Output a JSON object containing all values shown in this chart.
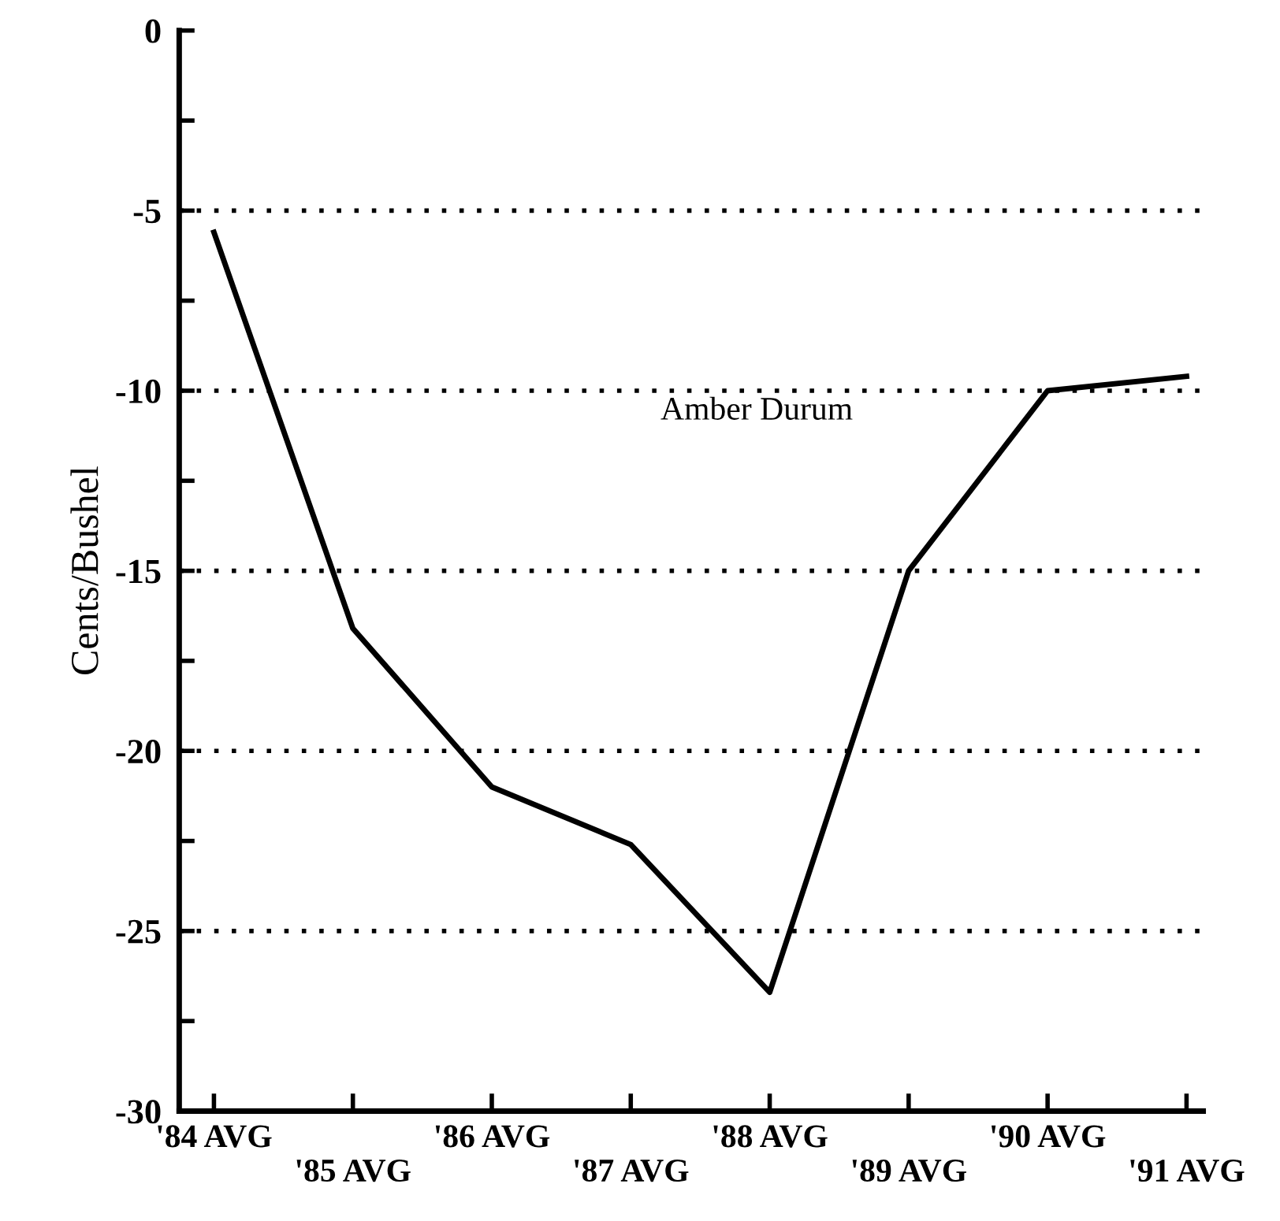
{
  "chart_data": {
    "type": "line",
    "ylabel": "Cents/Bushel",
    "categories": [
      "'84 AVG",
      "'85 AVG",
      "'86 AVG",
      "'87 AVG",
      "'88 AVG",
      "'89 AVG",
      "'90 AVG",
      "'91 AVG"
    ],
    "series": [
      {
        "name": "Amber Durum",
        "color": "#000000",
        "values": [
          -5.6,
          -16.6,
          -21.0,
          -22.6,
          -26.7,
          -15.0,
          -10.0,
          -9.6
        ]
      }
    ],
    "ylim": [
      -30,
      0
    ],
    "yticks": [
      -30,
      {
        "value": -27.5,
        "label": null
      },
      -25,
      {
        "value": -22.5,
        "label": null
      },
      -20,
      {
        "value": -17.5,
        "label": null
      },
      -15,
      {
        "value": -12.5,
        "label": null
      },
      -10,
      {
        "value": -7.5,
        "label": null
      },
      -5,
      {
        "value": -2.5,
        "label": null
      },
      0
    ],
    "grid": "y",
    "marker": "none",
    "line_style": "solid",
    "legend": false
  }
}
